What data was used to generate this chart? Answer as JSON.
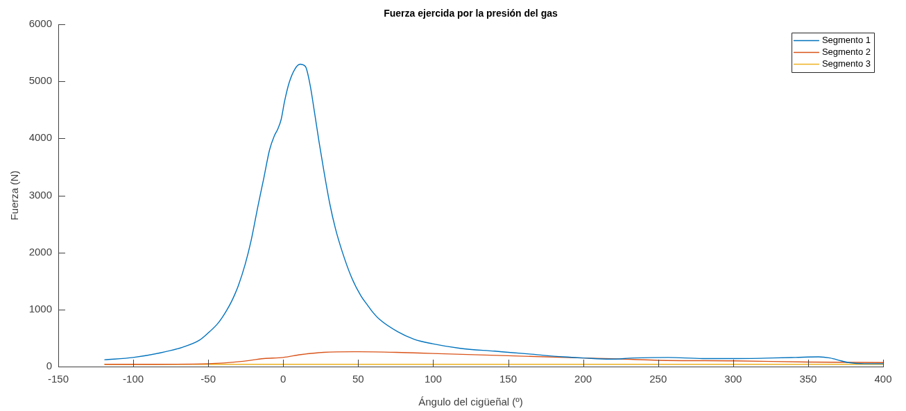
{
  "chart_data": {
    "type": "line",
    "title": "Fuerza ejercida por la presión del gas",
    "xlabel": "Ángulo del cigüeñal (º)",
    "ylabel": "Fuerza (N)",
    "xlim": [
      -150,
      400
    ],
    "xticks": [
      -150,
      -100,
      -50,
      0,
      50,
      100,
      150,
      200,
      250,
      300,
      350,
      400
    ],
    "ylim": [
      0,
      6000
    ],
    "yticks": [
      0,
      1000,
      2000,
      3000,
      4000,
      5000,
      6000
    ],
    "legend": "top right",
    "marker": "none",
    "line_style": "solid",
    "series": [
      {
        "name": "Segmento 1",
        "color": "#0072bd",
        "x": [
          -119,
          -100,
          -82,
          -67,
          -56,
          -50,
          -43.8,
          -40.7,
          -37.6,
          -34.5,
          -32.2,
          -29.9,
          -25.3,
          -21.4,
          -16.8,
          -12.9,
          -9.1,
          -6,
          -3.7,
          -1.4,
          0.9,
          4,
          7.9,
          11.2,
          14.8,
          17.9,
          20.9,
          24,
          27.1,
          31,
          34.8,
          39.4,
          45.6,
          51.8,
          56.4,
          59.5,
          64.1,
          76.4,
          87.2,
          99.5,
          118,
          141,
          164,
          187,
          200.5,
          218,
          233.6,
          256.7,
          279.8,
          300,
          326,
          341.5,
          357,
          364.6,
          372,
          377,
          387.7,
          400
        ],
        "values": [
          120,
          160,
          240,
          340,
          460,
          590,
          750,
          860,
          990,
          1140,
          1270,
          1420,
          1800,
          2210,
          2820,
          3310,
          3800,
          4040,
          4160,
          4330,
          4650,
          4980,
          5220,
          5300,
          5260,
          4940,
          4450,
          3920,
          3430,
          2860,
          2420,
          2010,
          1560,
          1240,
          1070,
          960,
          830,
          610,
          480,
          400,
          320,
          270,
          220,
          170,
          150,
          130,
          150,
          160,
          140,
          140,
          150,
          160,
          170,
          150,
          100,
          70,
          50,
          50
        ]
      },
      {
        "name": "Segmento 2",
        "color": "#d95319",
        "x": [
          -119,
          -90,
          -50,
          -28,
          -13,
          0,
          11.7,
          27,
          50,
          75,
          99.5,
          150,
          200,
          227.5,
          250,
          300,
          350,
          400
        ],
        "values": [
          40,
          40,
          50,
          90,
          140,
          160,
          210,
          250,
          260,
          250,
          230,
          190,
          150,
          130,
          110,
          100,
          80,
          70
        ]
      },
      {
        "name": "Segmento 3",
        "color": "#edb120",
        "x": [
          -119,
          0,
          100,
          200,
          300,
          400
        ],
        "values": [
          40,
          40,
          40,
          40,
          40,
          40
        ]
      }
    ]
  }
}
